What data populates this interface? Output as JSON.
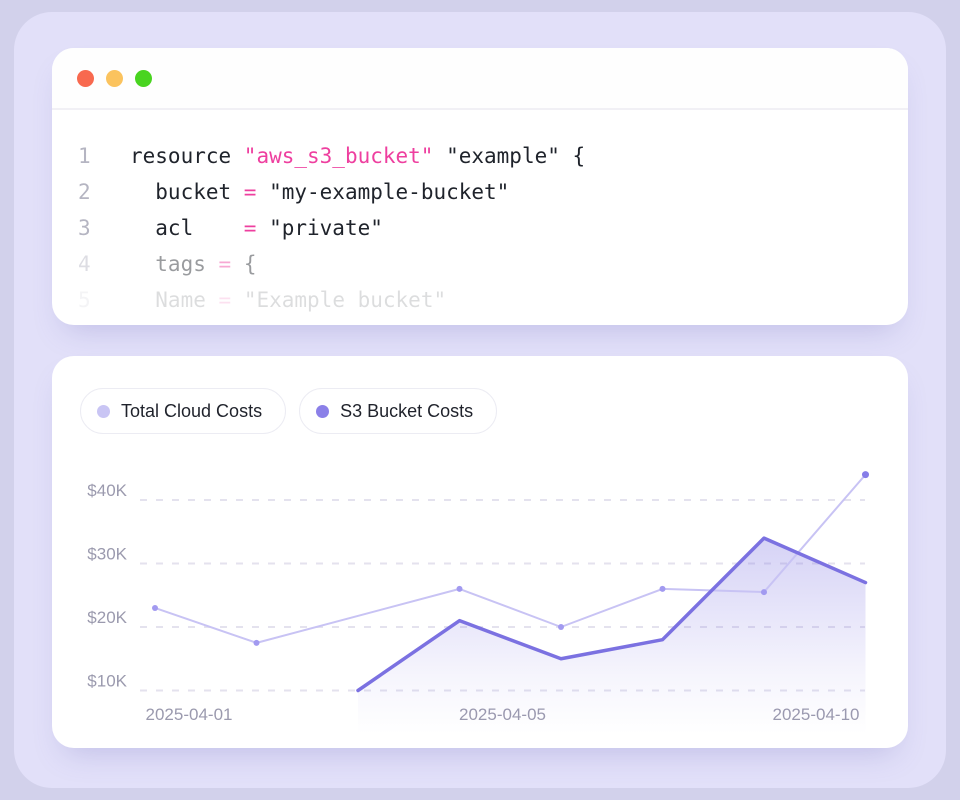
{
  "page": {
    "bg_outer": "#d2d1eb",
    "bg_inner": "#e2e0f9"
  },
  "code_window": {
    "traffic_lights": [
      {
        "name": "close-button",
        "color": "#f8694f"
      },
      {
        "name": "minimize-button",
        "color": "#fbc35e"
      },
      {
        "name": "maximize-button",
        "color": "#49d420"
      }
    ],
    "syntax_colors": {
      "text": "#1f232b",
      "accent": "#ee3f9f",
      "line_number": "#b5b5c2"
    },
    "lines": [
      {
        "num": "1",
        "opacity": 1,
        "tokens": [
          [
            "d",
            "resource "
          ],
          [
            "p",
            "\"aws_s3_bucket\""
          ],
          [
            "d",
            " \"example\" {"
          ]
        ]
      },
      {
        "num": "2",
        "opacity": 1,
        "tokens": [
          [
            "d",
            "  bucket "
          ],
          [
            "p",
            "="
          ],
          [
            "d",
            " \"my-example-bucket\""
          ]
        ]
      },
      {
        "num": "3",
        "opacity": 1,
        "tokens": [
          [
            "d",
            "  acl    "
          ],
          [
            "p",
            "="
          ],
          [
            "d",
            " \"private\""
          ]
        ]
      },
      {
        "num": "4",
        "opacity": 0.45,
        "tokens": [
          [
            "d",
            "  tags "
          ],
          [
            "p",
            "="
          ],
          [
            "d",
            " {"
          ]
        ]
      },
      {
        "num": "5",
        "opacity": 0.15,
        "tokens": [
          [
            "d",
            "  Name "
          ],
          [
            "p",
            "="
          ],
          [
            "d",
            " \"Example bucket\""
          ]
        ]
      }
    ]
  },
  "chart_panel": {
    "legend": [
      {
        "label": "Total Cloud Costs",
        "color": "#c9c5f4"
      },
      {
        "label": "S3 Bucket Costs",
        "color": "#8b80e8"
      }
    ]
  },
  "chart_data": {
    "type": "line",
    "title": "",
    "xlabel": "",
    "ylabel": "",
    "x_tick_labels": [
      "2025-04-01",
      "2025-04-05",
      "2025-04-10"
    ],
    "y_ticks": [
      {
        "label": "$10K",
        "value": 10000
      },
      {
        "label": "$20K",
        "value": 20000
      },
      {
        "label": "$30K",
        "value": 30000
      },
      {
        "label": "$40K",
        "value": 40000
      }
    ],
    "ylim": [
      5000,
      47000
    ],
    "x_slots": 8,
    "grid": "horizontal-dashed",
    "grid_color": "#e4e2ee",
    "axis_label_color": "#9b9aae",
    "legend_position": "top-left",
    "series": [
      {
        "name": "Total Cloud Costs",
        "color": "#c8c3f4",
        "dot_color": "#a29af0",
        "end_dot_color": "#867de8",
        "line_width": 2,
        "fill": false,
        "points": [
          {
            "x": 0,
            "y": 23000
          },
          {
            "x": 1,
            "y": 17500
          },
          {
            "x": 3,
            "y": 26000
          },
          {
            "x": 4,
            "y": 20000
          },
          {
            "x": 5,
            "y": 26000
          },
          {
            "x": 6,
            "y": 25500
          },
          {
            "x": 7,
            "y": 44000
          }
        ]
      },
      {
        "name": "S3 Bucket Costs",
        "color": "#7b71e1",
        "line_width": 3.5,
        "fill": true,
        "fill_color": "#7e74e2",
        "points": [
          {
            "x": 2,
            "y": 10000
          },
          {
            "x": 3,
            "y": 21000
          },
          {
            "x": 4,
            "y": 15000
          },
          {
            "x": 5,
            "y": 18000
          },
          {
            "x": 6,
            "y": 34000
          },
          {
            "x": 7,
            "y": 27000
          }
        ]
      }
    ]
  }
}
